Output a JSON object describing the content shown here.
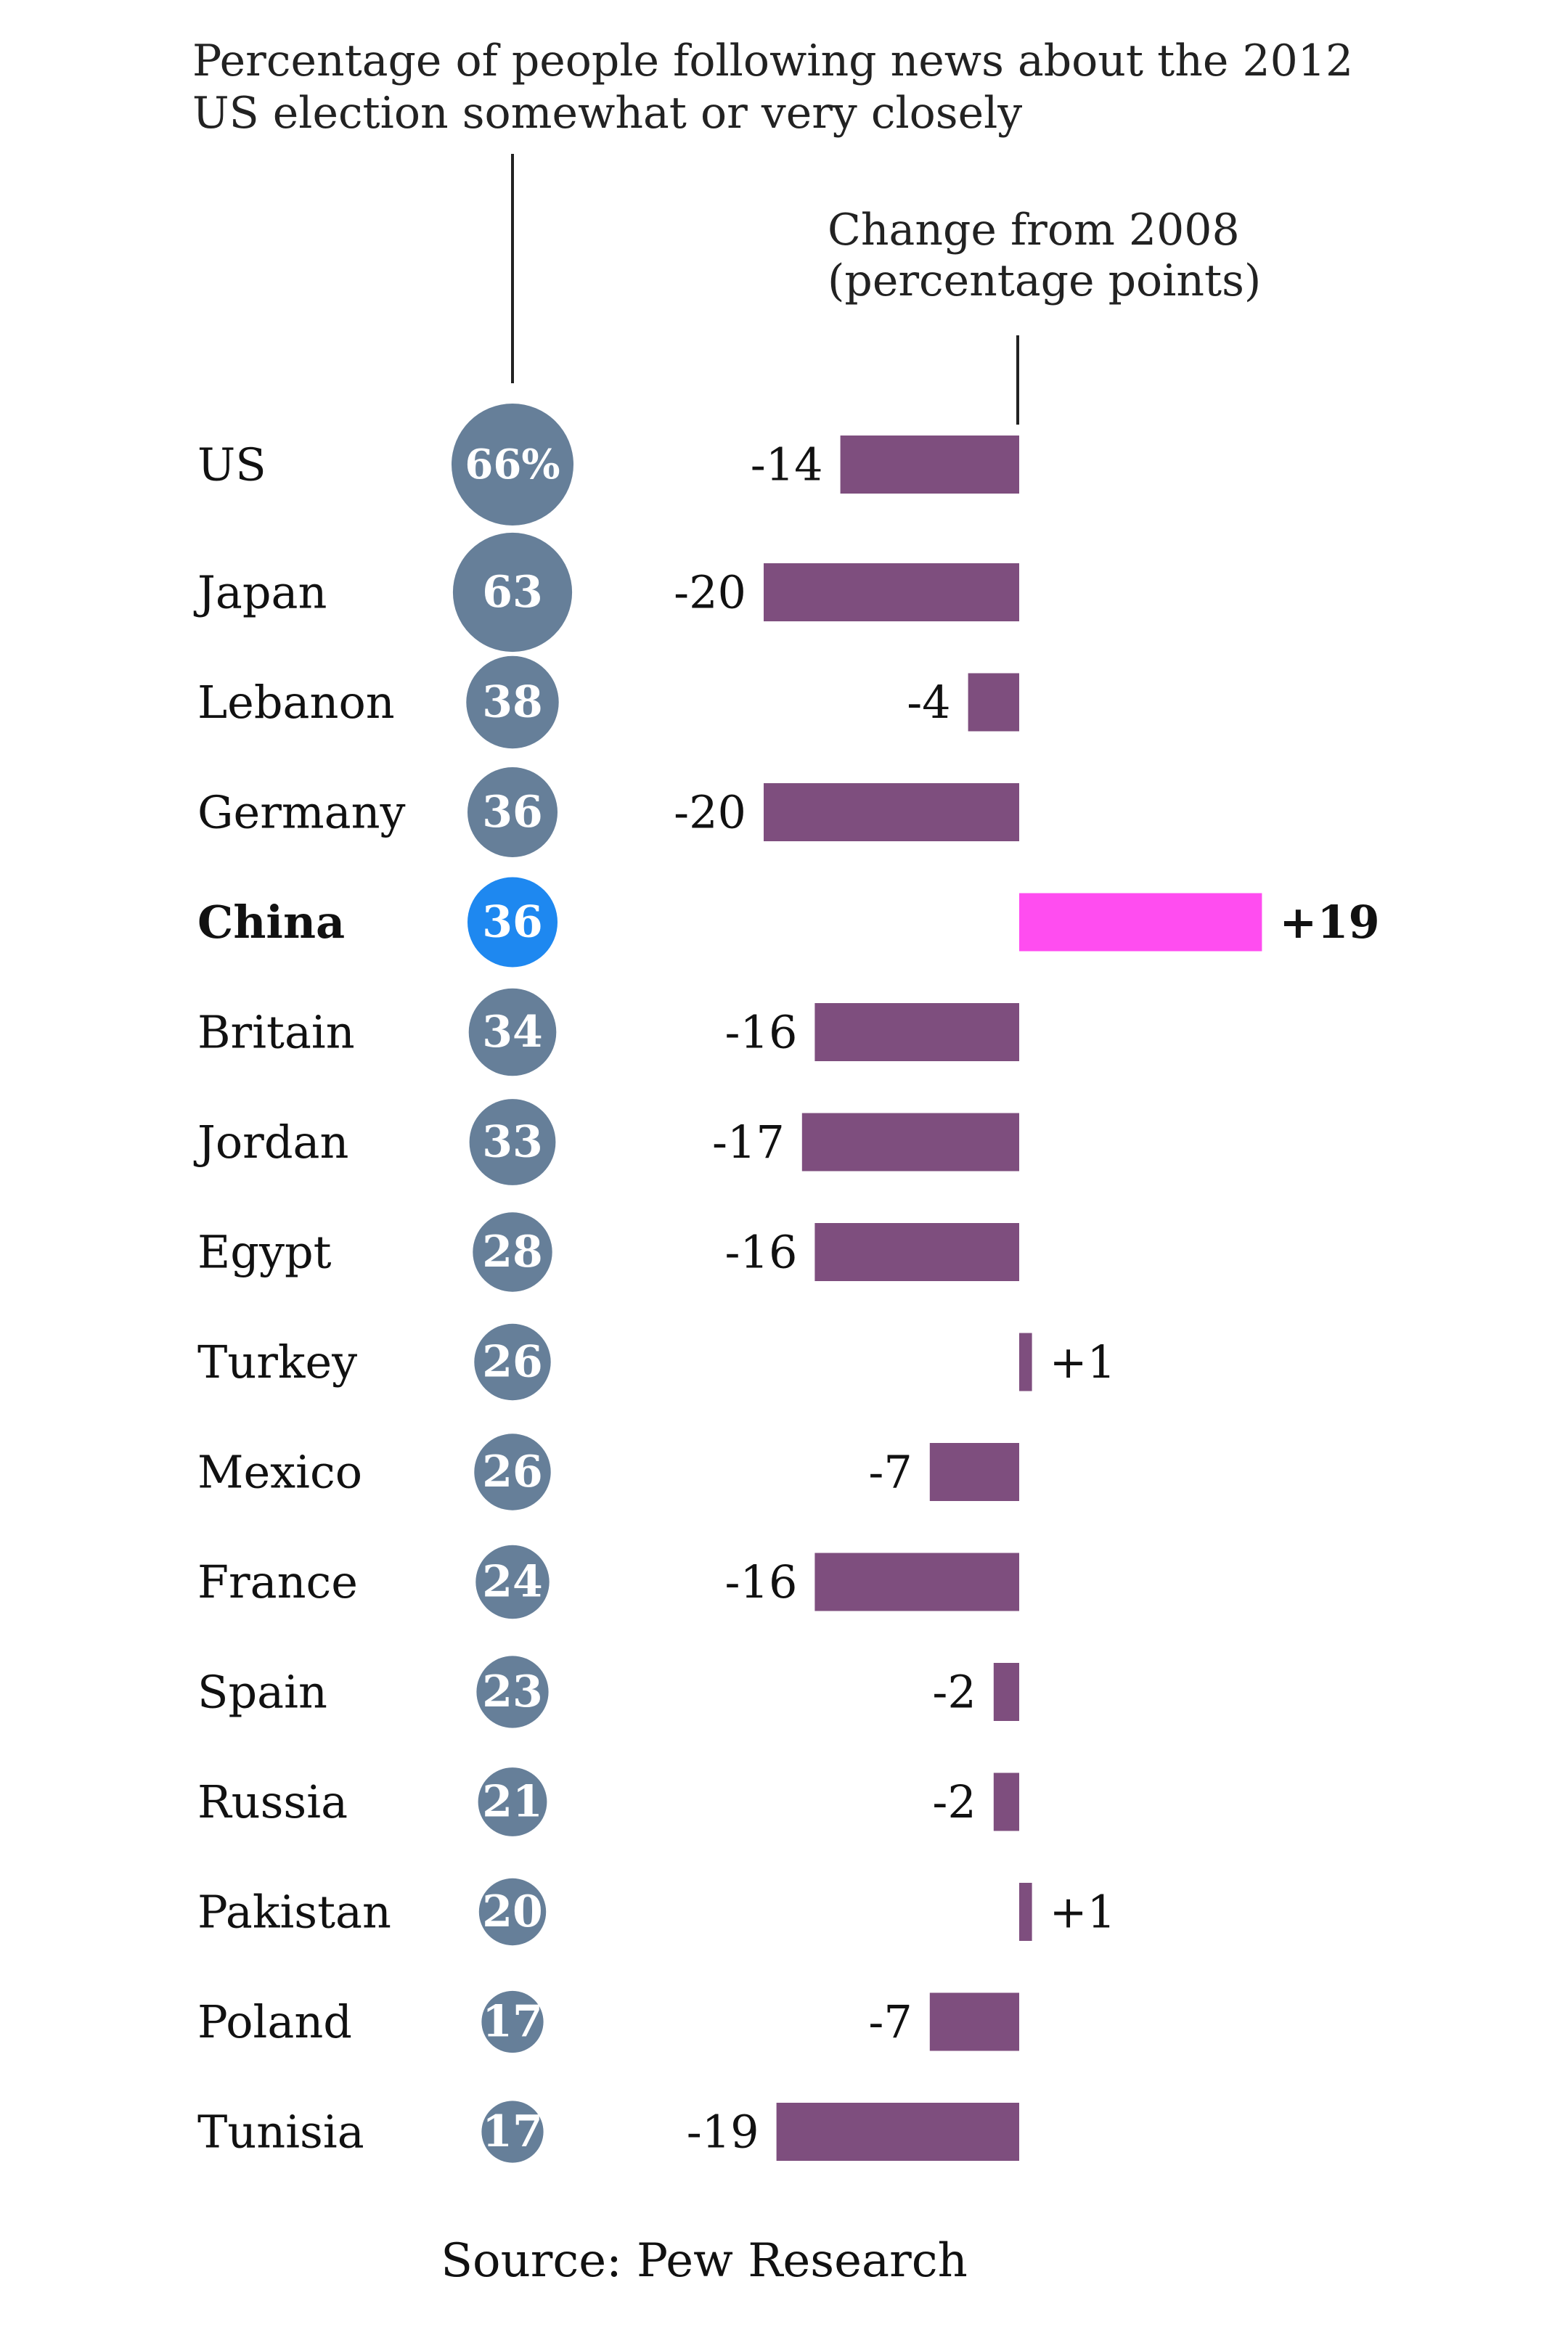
{
  "titles": {
    "percentage": "Percentage of people following news about the 2012 US election somewhat or very closely",
    "change": "Change from 2008 (percentage points)"
  },
  "source": "Source: Pew Research",
  "colors": {
    "bubble": "#667f99",
    "bubble_highlight": "#1e88f0",
    "bar": "#7e4e7e",
    "bar_highlight": "#ff4df0"
  },
  "chart_data": {
    "type": "bar",
    "highlight": "China",
    "categories": [
      "US",
      "Japan",
      "Lebanon",
      "Germany",
      "China",
      "Britain",
      "Jordan",
      "Egypt",
      "Turkey",
      "Mexico",
      "France",
      "Spain",
      "Russia",
      "Pakistan",
      "Poland",
      "Tunisia"
    ],
    "series": [
      {
        "values": [
          66,
          63,
          38,
          36,
          36,
          34,
          33,
          28,
          26,
          26,
          24,
          23,
          21,
          20,
          17,
          17
        ],
        "labels": [
          "66%",
          "63",
          "38",
          "36",
          "36",
          "34",
          "33",
          "28",
          "26",
          "26",
          "24",
          "23",
          "21",
          "20",
          "17",
          "17"
        ]
      },
      {
        "values": [
          -14,
          -20,
          -4,
          -20,
          19,
          -16,
          -17,
          -16,
          1,
          -7,
          -16,
          -2,
          -2,
          1,
          -7,
          -19
        ],
        "labels": [
          "-14",
          "-20",
          "-4",
          "-20",
          "+19",
          "-16",
          "-17",
          "-16",
          "+1",
          "-7",
          "-16",
          "-2",
          "-2",
          "+1",
          "-7",
          "-19"
        ]
      }
    ]
  }
}
